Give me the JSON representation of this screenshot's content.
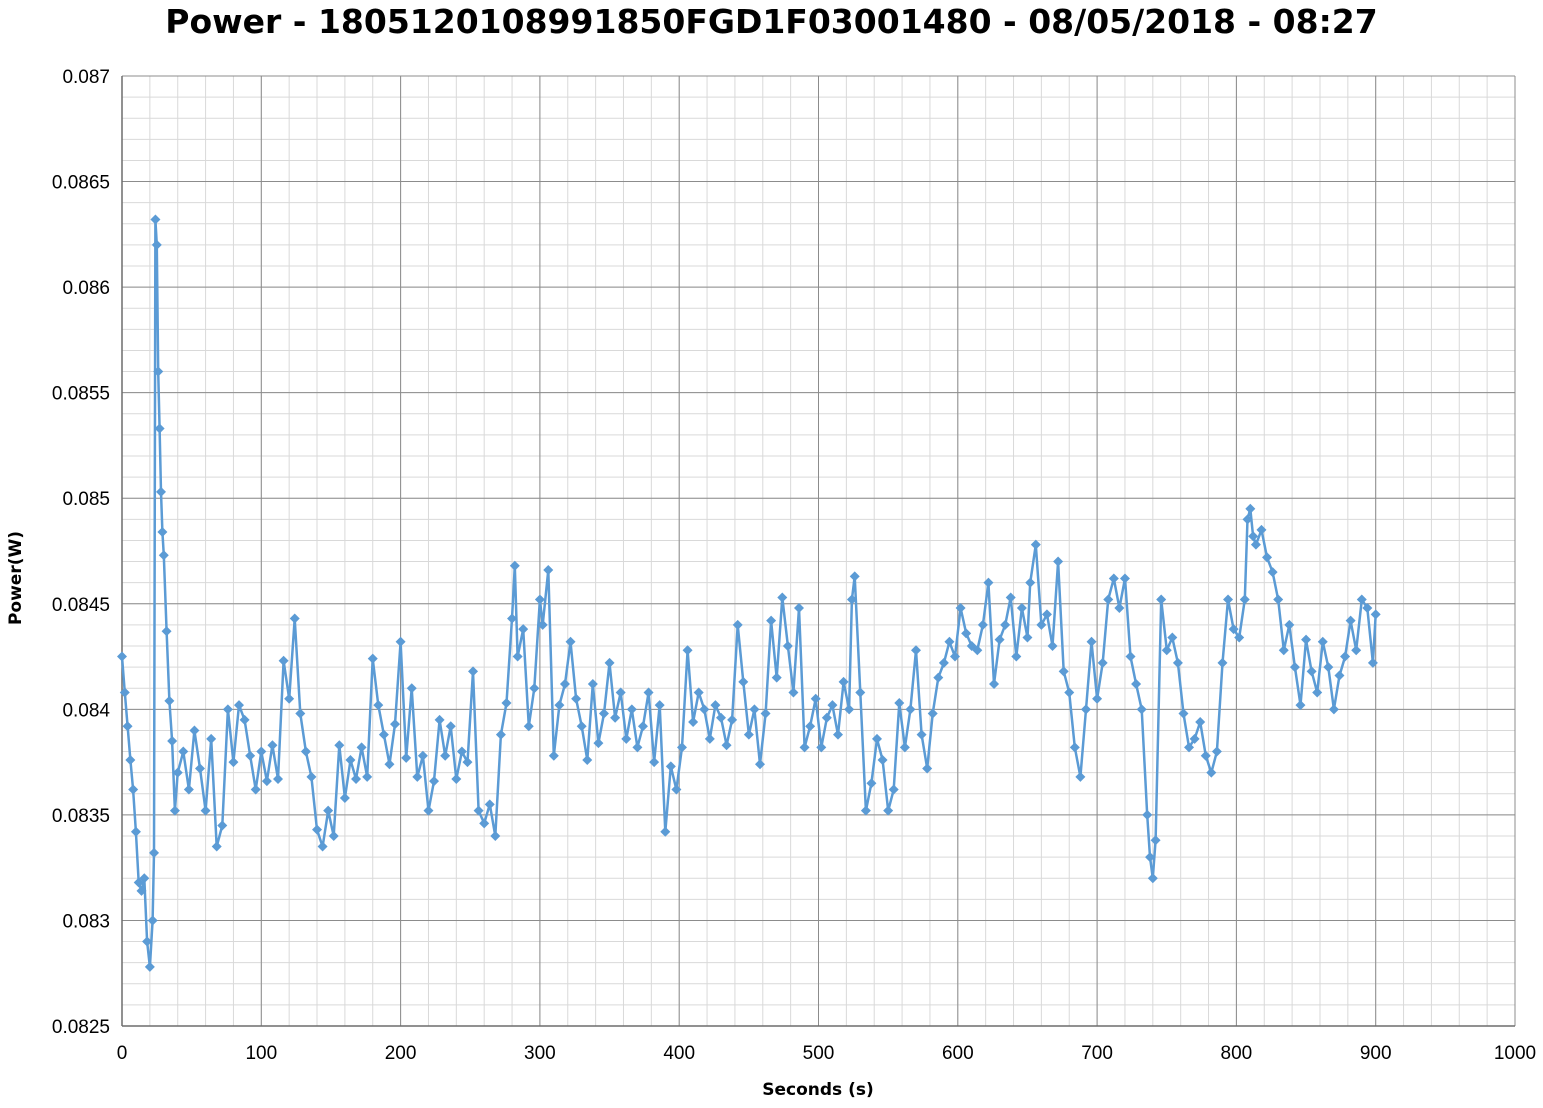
{
  "chart_data": {
    "type": "line",
    "title": "Power - 1805120108991850FGD1F03001480 - 08/05/2018 - 08:27",
    "xlabel": "Seconds (s)",
    "ylabel": "Power(W)",
    "xlim": [
      0,
      1000
    ],
    "ylim": [
      0.0825,
      0.087
    ],
    "x_ticks": [
      "0",
      "100",
      "200",
      "300",
      "400",
      "500",
      "600",
      "700",
      "800",
      "900",
      "1000"
    ],
    "y_ticks": [
      "0.0825",
      "0.083",
      "0.0835",
      "0.084",
      "0.0845",
      "0.085",
      "0.0855",
      "0.086",
      "0.0865",
      "0.087"
    ],
    "grid": true,
    "legend": "none",
    "series_color": "#5B9BD5",
    "series": [
      {
        "marker": "diamond",
        "x": [
          0,
          2,
          4,
          6,
          8,
          10,
          12,
          14,
          16,
          18,
          20,
          22,
          23,
          24,
          25,
          26,
          27,
          28,
          29,
          30,
          32,
          34,
          36,
          38,
          40,
          44,
          48,
          52,
          56,
          60,
          64,
          68,
          72,
          76,
          80,
          84,
          88,
          92,
          96,
          100,
          104,
          108,
          112,
          116,
          120,
          124,
          128,
          132,
          136,
          140,
          144,
          148,
          152,
          156,
          160,
          164,
          168,
          172,
          176,
          180,
          184,
          188,
          192,
          196,
          200,
          204,
          208,
          212,
          216,
          220,
          224,
          228,
          232,
          236,
          240,
          244,
          248,
          252,
          256,
          260,
          264,
          268,
          272,
          276,
          280,
          282,
          284,
          288,
          292,
          296,
          300,
          302,
          306,
          310,
          314,
          318,
          322,
          326,
          330,
          334,
          338,
          342,
          346,
          350,
          354,
          358,
          362,
          366,
          370,
          374,
          378,
          382,
          386,
          390,
          394,
          398,
          402,
          406,
          410,
          414,
          418,
          422,
          426,
          430,
          434,
          438,
          442,
          446,
          450,
          454,
          458,
          462,
          466,
          470,
          474,
          478,
          482,
          486,
          490,
          494,
          498,
          502,
          506,
          510,
          514,
          518,
          522,
          524,
          526,
          530,
          534,
          538,
          542,
          546,
          550,
          554,
          558,
          562,
          566,
          570,
          574,
          578,
          582,
          586,
          590,
          594,
          598,
          602,
          606,
          610,
          614,
          618,
          622,
          626,
          630,
          634,
          638,
          642,
          646,
          650,
          652,
          656,
          660,
          664,
          668,
          672,
          676,
          680,
          684,
          688,
          692,
          696,
          700,
          704,
          708,
          712,
          716,
          720,
          724,
          728,
          732,
          736,
          738,
          740,
          742,
          746,
          750,
          754,
          758,
          762,
          766,
          770,
          774,
          778,
          782,
          786,
          790,
          794,
          798,
          802,
          806,
          808,
          810,
          812,
          814,
          818,
          822,
          826,
          830,
          834,
          838,
          842,
          846,
          850,
          854,
          858,
          862,
          866,
          870,
          874,
          878,
          882,
          886,
          890,
          894,
          898,
          900
        ],
        "y": [
          0.08425,
          0.08408,
          0.08392,
          0.08376,
          0.08362,
          0.08342,
          0.08318,
          0.08314,
          0.0832,
          0.0829,
          0.08278,
          0.083,
          0.08332,
          0.08632,
          0.0862,
          0.0856,
          0.08533,
          0.08503,
          0.08484,
          0.08473,
          0.08437,
          0.08404,
          0.08385,
          0.08352,
          0.0837,
          0.0838,
          0.08362,
          0.0839,
          0.08372,
          0.08352,
          0.08386,
          0.08335,
          0.08345,
          0.084,
          0.08375,
          0.08402,
          0.08395,
          0.08378,
          0.08362,
          0.0838,
          0.08366,
          0.08383,
          0.08367,
          0.08423,
          0.08405,
          0.08443,
          0.08398,
          0.0838,
          0.08368,
          0.08343,
          0.08335,
          0.08352,
          0.0834,
          0.08383,
          0.08358,
          0.08376,
          0.08367,
          0.08382,
          0.08368,
          0.08424,
          0.08402,
          0.08388,
          0.08374,
          0.08393,
          0.08432,
          0.08377,
          0.0841,
          0.08368,
          0.08378,
          0.08352,
          0.08366,
          0.08395,
          0.08378,
          0.08392,
          0.08367,
          0.0838,
          0.08375,
          0.08418,
          0.08352,
          0.08346,
          0.08355,
          0.0834,
          0.08388,
          0.08403,
          0.08443,
          0.08468,
          0.08425,
          0.08438,
          0.08392,
          0.0841,
          0.08452,
          0.0844,
          0.08466,
          0.08378,
          0.08402,
          0.08412,
          0.08432,
          0.08405,
          0.08392,
          0.08376,
          0.08412,
          0.08384,
          0.08398,
          0.08422,
          0.08396,
          0.08408,
          0.08386,
          0.084,
          0.08382,
          0.08392,
          0.08408,
          0.08375,
          0.08402,
          0.08342,
          0.08373,
          0.08362,
          0.08382,
          0.08428,
          0.08394,
          0.08408,
          0.084,
          0.08386,
          0.08402,
          0.08396,
          0.08383,
          0.08395,
          0.0844,
          0.08413,
          0.08388,
          0.084,
          0.08374,
          0.08398,
          0.08442,
          0.08415,
          0.08453,
          0.0843,
          0.08408,
          0.08448,
          0.08382,
          0.08392,
          0.08405,
          0.08382,
          0.08396,
          0.08402,
          0.08388,
          0.08413,
          0.084,
          0.08452,
          0.08463,
          0.08408,
          0.08352,
          0.08365,
          0.08386,
          0.08376,
          0.08352,
          0.08362,
          0.08403,
          0.08382,
          0.084,
          0.08428,
          0.08388,
          0.08372,
          0.08398,
          0.08415,
          0.08422,
          0.08432,
          0.08425,
          0.08448,
          0.08436,
          0.0843,
          0.08428,
          0.0844,
          0.0846,
          0.08412,
          0.08433,
          0.0844,
          0.08453,
          0.08425,
          0.08448,
          0.08434,
          0.0846,
          0.08478,
          0.0844,
          0.08445,
          0.0843,
          0.0847,
          0.08418,
          0.08408,
          0.08382,
          0.08368,
          0.084,
          0.08432,
          0.08405,
          0.08422,
          0.08452,
          0.08462,
          0.08448,
          0.08462,
          0.08425,
          0.08412,
          0.084,
          0.0835,
          0.0833,
          0.0832,
          0.08338,
          0.08452,
          0.08428,
          0.08434,
          0.08422,
          0.08398,
          0.08382,
          0.08386,
          0.08394,
          0.08378,
          0.0837,
          0.0838,
          0.08422,
          0.08452,
          0.08438,
          0.08434,
          0.08452,
          0.0849,
          0.08495,
          0.08482,
          0.08478,
          0.08485,
          0.08472,
          0.08465,
          0.08452,
          0.08428,
          0.0844,
          0.0842,
          0.08402,
          0.08433,
          0.08418,
          0.08408,
          0.08432,
          0.0842,
          0.084,
          0.08416,
          0.08425,
          0.08442,
          0.08428,
          0.08452,
          0.08448,
          0.08422,
          0.08445
        ]
      }
    ]
  }
}
